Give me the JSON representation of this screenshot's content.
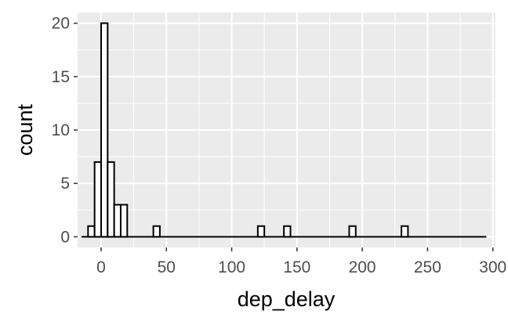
{
  "chart_data": {
    "type": "bar",
    "subtype": "histogram",
    "xlabel": "dep_delay",
    "ylabel": "count",
    "xlim": [
      -18,
      302
    ],
    "ylim": [
      -1,
      21
    ],
    "x_ticks": [
      0,
      50,
      100,
      150,
      200,
      250,
      300
    ],
    "x_tick_labels": [
      "0",
      "50",
      "100",
      "150",
      "200",
      "250",
      "300"
    ],
    "y_ticks": [
      0,
      5,
      10,
      15,
      20
    ],
    "y_tick_labels": [
      "0",
      "5",
      "10",
      "15",
      "20"
    ],
    "bin_width": 5,
    "bins": [
      {
        "x0": -15,
        "x1": -10,
        "count": 0
      },
      {
        "x0": -10,
        "x1": -5,
        "count": 1
      },
      {
        "x0": -5,
        "x1": 0,
        "count": 7
      },
      {
        "x0": 0,
        "x1": 5,
        "count": 20
      },
      {
        "x0": 5,
        "x1": 10,
        "count": 7
      },
      {
        "x0": 10,
        "x1": 15,
        "count": 3
      },
      {
        "x0": 15,
        "x1": 20,
        "count": 3
      },
      {
        "x0": 40,
        "x1": 45,
        "count": 1
      },
      {
        "x0": 120,
        "x1": 125,
        "count": 1
      },
      {
        "x0": 140,
        "x1": 145,
        "count": 1
      },
      {
        "x0": 190,
        "x1": 195,
        "count": 1
      },
      {
        "x0": 230,
        "x1": 235,
        "count": 1
      }
    ],
    "range": [
      -15,
      295
    ],
    "bar_fill": "#ffffff",
    "bar_stroke": "#000000",
    "panel_background": "#ebebeb",
    "grid_color": "#ffffff",
    "grid": true,
    "legend": "none"
  }
}
